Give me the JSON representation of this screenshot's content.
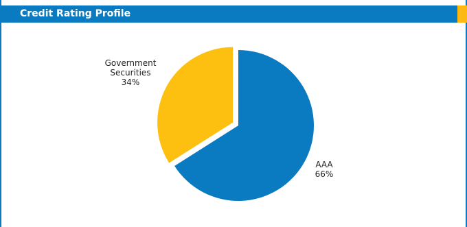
{
  "header": {
    "title": "Credit Rating Profile"
  },
  "colors": {
    "brand_blue": "#0a7bc1",
    "accent_yellow": "#fdb913"
  },
  "chart_data": {
    "type": "pie",
    "title": "",
    "categories": [
      "AAA",
      "Government Securities"
    ],
    "values": [
      66,
      34
    ],
    "colors": [
      "#0a7bc1",
      "#fdc010"
    ],
    "exploded": [
      "Government Securities"
    ],
    "legend": "none",
    "data_labels": [
      {
        "category_lines": [
          "AAA"
        ],
        "value_label": "66%"
      },
      {
        "category_lines": [
          "Government",
          "Securities"
        ],
        "value_label": "34%"
      }
    ]
  }
}
